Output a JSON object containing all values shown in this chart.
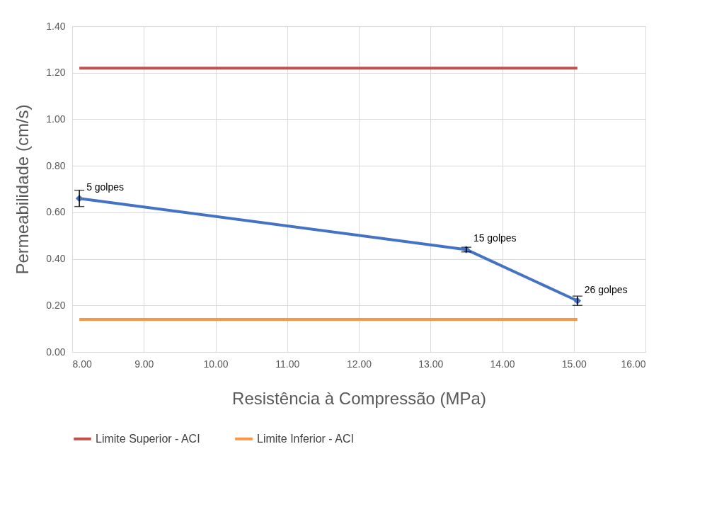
{
  "chart_data": {
    "type": "line",
    "xlabel": "Resistência à Compressão (MPa)",
    "ylabel": "Permeabilidade (cm/s)",
    "xlim": [
      8,
      16
    ],
    "ylim": [
      0,
      1.4
    ],
    "xticks": [
      {
        "value": 8,
        "label": "8.00"
      },
      {
        "value": 9,
        "label": "9.00"
      },
      {
        "value": 10,
        "label": "10.00"
      },
      {
        "value": 11,
        "label": "11.00"
      },
      {
        "value": 12,
        "label": "12.00"
      },
      {
        "value": 13,
        "label": "13.00"
      },
      {
        "value": 14,
        "label": "14.00"
      },
      {
        "value": 15,
        "label": "15.00"
      },
      {
        "value": 16,
        "label": "16.00"
      }
    ],
    "yticks": [
      {
        "value": 0,
        "label": "0.00"
      },
      {
        "value": 0.2,
        "label": "0.20"
      },
      {
        "value": 0.4,
        "label": "0.40"
      },
      {
        "value": 0.6,
        "label": "0.60"
      },
      {
        "value": 0.8,
        "label": "0.80"
      },
      {
        "value": 1.0,
        "label": "1.00"
      },
      {
        "value": 1.2,
        "label": "1.20"
      },
      {
        "value": 1.4,
        "label": "1.40"
      }
    ],
    "grid": true,
    "legend": "bottom",
    "line_style": "solid",
    "series": [
      {
        "color": "#4472c4",
        "x": [
          8.1,
          13.5,
          15.05
        ],
        "values": [
          0.66,
          0.44,
          0.22
        ],
        "errors": [
          0.035,
          0.01,
          0.02
        ],
        "marker": "diamond"
      },
      {
        "name": "Limite Superior - ACI",
        "color": "#c0504d",
        "x": [
          8.1,
          15.05
        ],
        "values": [
          1.22,
          1.22
        ],
        "marker": "none"
      },
      {
        "name": "Limite Inferior - ACI",
        "color": "#f79646",
        "x": [
          8.1,
          15.05
        ],
        "values": [
          0.14,
          0.14
        ],
        "marker": "none"
      }
    ],
    "annotations": [
      {
        "text": "5 golpes",
        "x": 8.1,
        "y": 0.66
      },
      {
        "text": "15 golpes",
        "x": 13.5,
        "y": 0.44
      },
      {
        "text": "26 golpes",
        "x": 15.05,
        "y": 0.22
      }
    ]
  }
}
